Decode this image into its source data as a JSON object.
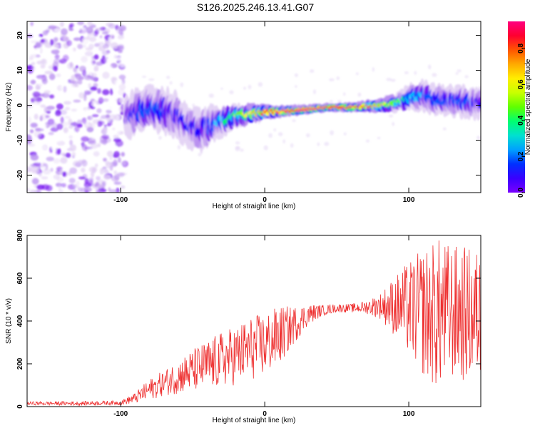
{
  "title": "S126.2025.246.13.41.G07",
  "colors": {
    "snr_line": "#ee3030",
    "colormap": [
      "#ffffff",
      "#e4d4f5",
      "#b88ef0",
      "#7a1af0",
      "#2200ff",
      "#0055ff",
      "#00c8ff",
      "#00ff64",
      "#78ff00",
      "#ffff00",
      "#ffb000",
      "#ff3c00",
      "#ff0050",
      "#ff0099"
    ]
  },
  "chart_data": [
    {
      "type": "heatmap",
      "name": "spectrogram",
      "xlabel": "Height of straight line (km)",
      "ylabel": "Frequency (Hz)",
      "xlim": [
        -165,
        150
      ],
      "ylim": [
        -25,
        24
      ],
      "x_ticks": [
        -100,
        0,
        100
      ],
      "y_ticks": [
        20,
        10,
        0,
        -10,
        -20
      ],
      "x_tick_labels": [
        "-100",
        "0",
        "100"
      ],
      "y_tick_labels": [
        "20",
        "10",
        "0",
        "-10",
        "-20"
      ],
      "colorbar": {
        "label": "Normalized spectral amplitude",
        "range": [
          0,
          0.95
        ],
        "ticks": [
          0.0,
          0.2,
          0.4,
          0.6,
          0.8
        ],
        "tick_labels": [
          "0.0",
          "0.2",
          "0.4",
          "0.6",
          "0.8"
        ]
      },
      "ridge": {
        "x": [
          -95,
          -85,
          -75,
          -65,
          -55,
          -45,
          -38,
          -30,
          -20,
          -10,
          0,
          10,
          20,
          30,
          40,
          50,
          60,
          70,
          80,
          90,
          100,
          110,
          120,
          130,
          140,
          148
        ],
        "freq": [
          -3,
          -1.5,
          -1,
          -2,
          -5,
          -7,
          -6,
          -4.5,
          -3,
          -2.5,
          -2,
          -1.8,
          -1.5,
          -1.2,
          -0.8,
          -0.6,
          -0.6,
          -0.3,
          -0.2,
          0.5,
          2.0,
          3.0,
          1.5,
          1.2,
          1.0,
          0.5
        ],
        "amp": [
          0.25,
          0.35,
          0.35,
          0.3,
          0.28,
          0.3,
          0.35,
          0.45,
          0.55,
          0.68,
          0.78,
          0.85,
          0.9,
          0.93,
          0.92,
          0.9,
          0.88,
          0.82,
          0.72,
          0.6,
          0.45,
          0.4,
          0.38,
          0.36,
          0.35,
          0.3
        ],
        "width": [
          5,
          5,
          5,
          5,
          5,
          5,
          4.5,
          3.5,
          2.8,
          2.2,
          1.8,
          1.4,
          1.2,
          1.1,
          1.0,
          1.0,
          1.1,
          1.3,
          1.6,
          2.0,
          3.0,
          3.5,
          3.5,
          3.5,
          3.5,
          3.5
        ]
      },
      "noise_region": {
        "x": [
          -165,
          -97
        ],
        "amp_max": 0.25
      }
    },
    {
      "type": "line",
      "name": "snr",
      "xlabel": "Height of straight line (km)",
      "ylabel": "SNR (10 * v/v)",
      "xlim": [
        -165,
        150
      ],
      "ylim": [
        0,
        800
      ],
      "x_ticks": [
        -100,
        0,
        100
      ],
      "y_ticks": [
        0,
        200,
        400,
        600,
        800
      ],
      "x_tick_labels": [
        "-100",
        "0",
        "100"
      ],
      "y_tick_labels": [
        "0",
        "200",
        "400",
        "600",
        "800"
      ],
      "series": [
        {
          "name": "SNR",
          "envelope": {
            "x": [
              -165,
              -130,
              -100,
              -90,
              -80,
              -70,
              -60,
              -50,
              -40,
              -30,
              -20,
              -10,
              0,
              10,
              20,
              30,
              40,
              50,
              60,
              70,
              80,
              90,
              100,
              110,
              120,
              130,
              140,
              150
            ],
            "mean": [
              15,
              15,
              18,
              40,
              80,
              110,
              140,
              170,
              190,
              220,
              240,
              270,
              290,
              330,
              380,
              430,
              450,
              460,
              460,
              465,
              470,
              470,
              460,
              440,
              430,
              440,
              430,
              430
            ],
            "spread": [
              8,
              10,
              10,
              25,
              50,
              60,
              80,
              100,
              120,
              130,
              140,
              150,
              150,
              140,
              90,
              50,
              25,
              20,
              20,
              30,
              60,
              140,
              220,
              300,
              360,
              320,
              320,
              300
            ]
          }
        }
      ]
    }
  ]
}
